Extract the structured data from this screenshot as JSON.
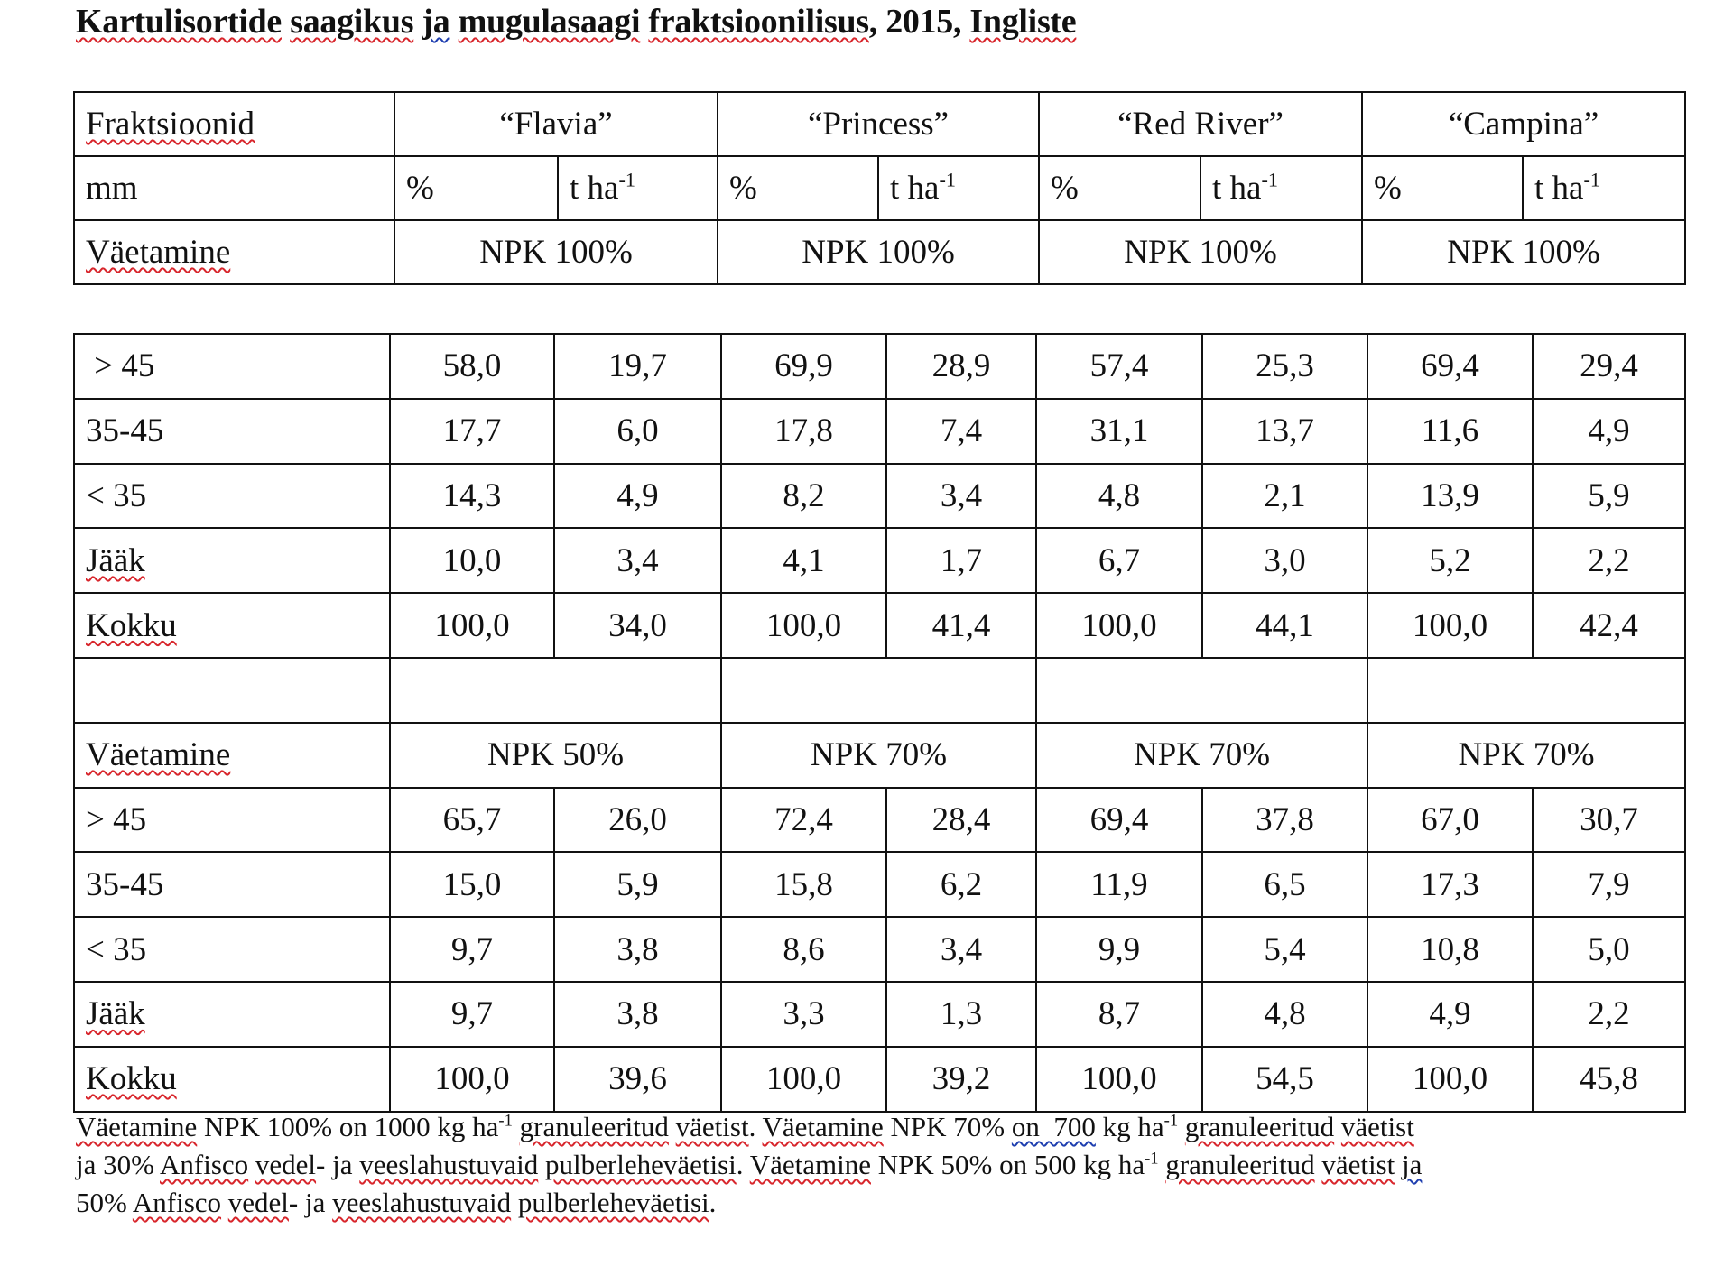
{
  "title": {
    "parts": [
      "Kartulisortide",
      " ",
      "saagikus",
      " ",
      "ja",
      " ",
      "mugulasaagi",
      " ",
      "fraktsioonilisus",
      ", 2015, ",
      "Ingliste"
    ]
  },
  "header_table": {
    "row_label_1": "Fraktsioonid",
    "varieties": [
      "“Flavia”",
      "“Princess”",
      "“Red River”",
      "“Campina”"
    ],
    "row_label_2": "mm",
    "unit_pct": "%",
    "unit_t": "t ha",
    "unit_sup": "-1",
    "row_label_3": "Väetamine",
    "fertilization": [
      "NPK 100%",
      "NPK 100%",
      "NPK 100%",
      "NPK 100%"
    ]
  },
  "data_table": {
    "section1": {
      "rows": [
        {
          "label": " > 45",
          "values": [
            "58,0",
            "19,7",
            "69,9",
            "28,9",
            "57,4",
            "25,3",
            "69,4",
            "29,4"
          ]
        },
        {
          "label": "35-45",
          "values": [
            "17,7",
            "6,0",
            "17,8",
            "7,4",
            "31,1",
            "13,7",
            "11,6",
            "4,9"
          ]
        },
        {
          "label": "< 35",
          "values": [
            "14,3",
            "4,9",
            "8,2",
            "3,4",
            "4,8",
            "2,1",
            "13,9",
            "5,9"
          ]
        },
        {
          "label": "Jääk",
          "values": [
            "10,0",
            "3,4",
            "4,1",
            "1,7",
            "6,7",
            "3,0",
            "5,2",
            "2,2"
          ]
        },
        {
          "label": "Kokku",
          "values": [
            "100,0",
            "34,0",
            "100,0",
            "41,4",
            "100,0",
            "44,1",
            "100,0",
            "42,4"
          ]
        }
      ]
    },
    "fert_label": "Väetamine",
    "fertilization2": [
      "NPK 50%",
      "NPK 70%",
      "NPK 70%",
      "NPK 70%"
    ],
    "section2": {
      "rows": [
        {
          "label": "> 45",
          "values": [
            "65,7",
            "26,0",
            "72,4",
            "28,4",
            "69,4",
            "37,8",
            "67,0",
            "30,7"
          ]
        },
        {
          "label": "35-45",
          "values": [
            "15,0",
            "5,9",
            "15,8",
            "6,2",
            "11,9",
            "6,5",
            "17,3",
            "7,9"
          ]
        },
        {
          "label": "< 35",
          "values": [
            "9,7",
            "3,8",
            "8,6",
            "3,4",
            "9,9",
            "5,4",
            "10,8",
            "5,0"
          ]
        },
        {
          "label": "Jääk",
          "values": [
            "9,7",
            "3,8",
            "3,3",
            "1,3",
            "8,7",
            "4,8",
            "4,9",
            "2,2"
          ]
        },
        {
          "label": "Kokku",
          "values": [
            "100,0",
            "39,6",
            "100,0",
            "39,2",
            "100,0",
            "54,5",
            "100,0",
            "45,8"
          ]
        }
      ]
    }
  },
  "footnote": {
    "line1": {
      "a": "Väetamine",
      "b": " NPK 100% on 1000 kg ha",
      "sup": "-1",
      "c": " ",
      "d": "granuleeritud",
      "e": " ",
      "f": "väetist",
      "g": ". ",
      "h": "Väetamine",
      "i": " NPK 70% ",
      "j": "on  700",
      "k": " kg ha",
      "sup2": "-1",
      "l": " ",
      "m": "granuleeritud",
      "n": " ",
      "o": "väetist"
    },
    "line2": {
      "a": "ja 30% ",
      "b": "Anfisco",
      "c": " ",
      "d": "vedel",
      "e": "- ja ",
      "f": "veeslahustuvaid",
      "g": " ",
      "h": "pulberleheväetisi",
      "i": ". ",
      "j": "Väetamine",
      "k": " NPK 50% on 500 kg ha",
      "sup": "-1",
      "l": " ",
      "m": "granuleeritud",
      "n": " ",
      "o": "väetist",
      "p": " ",
      "q": "ja"
    },
    "line3": {
      "a": "50% ",
      "b": "Anfisco",
      "c": " ",
      "d": "vedel",
      "e": "- ja ",
      "f": "veeslahustuvaid",
      "g": " ",
      "h": "pulberleheväetisi",
      "i": "."
    }
  },
  "colors": {
    "spell_underline": "#d8262c",
    "grammar_underline": "#1f3fb0",
    "border": "#111111"
  }
}
